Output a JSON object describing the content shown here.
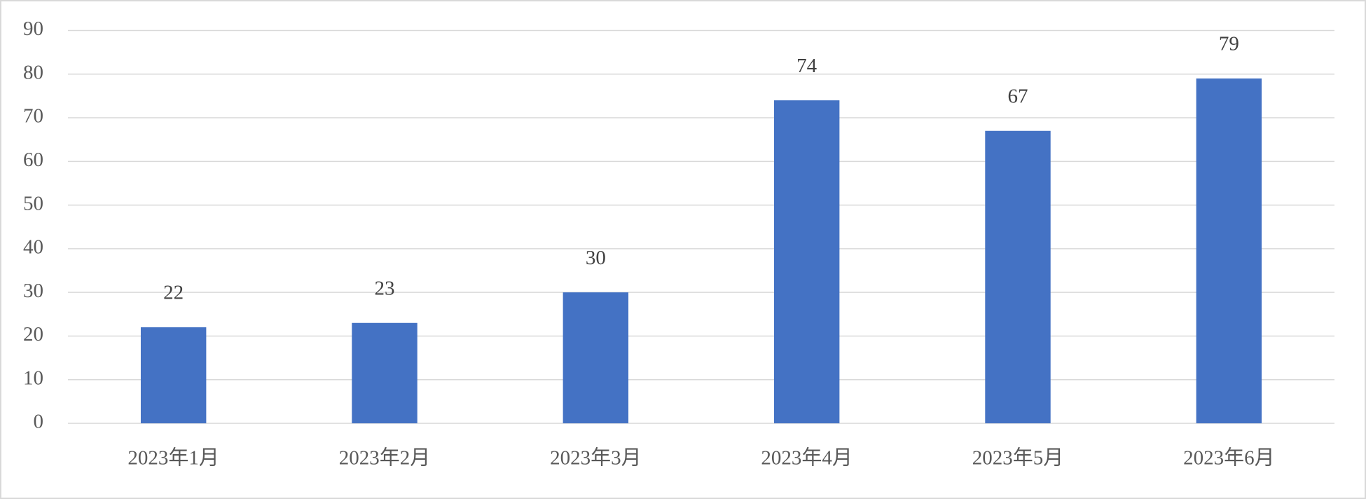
{
  "chart_data": {
    "type": "bar",
    "categories": [
      "2023年1月",
      "2023年2月",
      "2023年3月",
      "2023年4月",
      "2023年5月",
      "2023年6月"
    ],
    "values": [
      22,
      23,
      30,
      74,
      67,
      79
    ],
    "color": "#4472c4",
    "ylim": [
      0,
      90
    ],
    "yticks": [
      0,
      10,
      20,
      30,
      40,
      50,
      60,
      70,
      80,
      90
    ],
    "grid": true
  }
}
